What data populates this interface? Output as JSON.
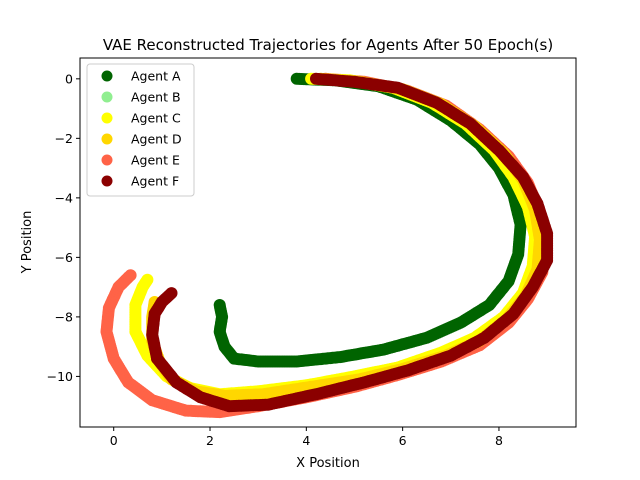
{
  "chart_data": {
    "type": "scatter",
    "title": "VAE Reconstructed Trajectories for Agents After 50 Epoch(s)",
    "xlabel": "X Position",
    "ylabel": "Y Position",
    "xlim": [
      -0.7,
      9.6
    ],
    "ylim": [
      -11.7,
      0.7
    ],
    "xticks": [
      0,
      2,
      4,
      6,
      8
    ],
    "yticks": [
      0,
      -2,
      -4,
      -6,
      -8,
      -10
    ],
    "grid": false,
    "legend_position": "top-left",
    "series": [
      {
        "name": "Agent A",
        "color": "#006400",
        "points": [
          [
            3.8,
            0.0
          ],
          [
            4.6,
            -0.05
          ],
          [
            5.5,
            -0.25
          ],
          [
            6.3,
            -0.7
          ],
          [
            7.0,
            -1.4
          ],
          [
            7.6,
            -2.2
          ],
          [
            8.0,
            -3.0
          ],
          [
            8.3,
            -3.9
          ],
          [
            8.45,
            -4.9
          ],
          [
            8.4,
            -5.9
          ],
          [
            8.2,
            -6.8
          ],
          [
            7.8,
            -7.6
          ],
          [
            7.2,
            -8.2
          ],
          [
            6.5,
            -8.7
          ],
          [
            5.6,
            -9.1
          ],
          [
            4.7,
            -9.35
          ],
          [
            3.8,
            -9.5
          ],
          [
            3.0,
            -9.5
          ],
          [
            2.5,
            -9.4
          ],
          [
            2.3,
            -9.0
          ],
          [
            2.2,
            -8.5
          ],
          [
            2.25,
            -8.0
          ],
          [
            2.2,
            -7.6
          ]
        ]
      },
      {
        "name": "Agent B",
        "color": "#90EE90",
        "points": []
      },
      {
        "name": "Agent C",
        "color": "#FFFF00",
        "points": [
          [
            4.1,
            0.0
          ],
          [
            4.9,
            -0.05
          ],
          [
            5.8,
            -0.3
          ],
          [
            6.6,
            -0.8
          ],
          [
            7.3,
            -1.5
          ],
          [
            7.9,
            -2.4
          ],
          [
            8.3,
            -3.3
          ],
          [
            8.6,
            -4.3
          ],
          [
            8.75,
            -5.3
          ],
          [
            8.7,
            -6.3
          ],
          [
            8.5,
            -7.2
          ],
          [
            8.1,
            -8.0
          ],
          [
            7.5,
            -8.7
          ],
          [
            6.8,
            -9.2
          ],
          [
            5.9,
            -9.7
          ],
          [
            5.0,
            -10.0
          ],
          [
            4.0,
            -10.3
          ],
          [
            3.0,
            -10.5
          ],
          [
            2.2,
            -10.6
          ],
          [
            1.6,
            -10.4
          ],
          [
            1.1,
            -10.0
          ],
          [
            0.7,
            -9.3
          ],
          [
            0.45,
            -8.5
          ],
          [
            0.45,
            -7.6
          ],
          [
            0.6,
            -7.0
          ],
          [
            0.7,
            -6.75
          ]
        ]
      },
      {
        "name": "Agent D",
        "color": "#FFD700",
        "points": [
          [
            4.3,
            0.0
          ],
          [
            5.1,
            -0.1
          ],
          [
            6.0,
            -0.35
          ],
          [
            6.8,
            -0.85
          ],
          [
            7.5,
            -1.6
          ],
          [
            8.1,
            -2.5
          ],
          [
            8.5,
            -3.4
          ],
          [
            8.75,
            -4.4
          ],
          [
            8.85,
            -5.4
          ],
          [
            8.8,
            -6.4
          ],
          [
            8.55,
            -7.3
          ],
          [
            8.15,
            -8.1
          ],
          [
            7.6,
            -8.8
          ],
          [
            6.9,
            -9.3
          ],
          [
            6.0,
            -9.75
          ],
          [
            5.1,
            -10.1
          ],
          [
            4.1,
            -10.35
          ],
          [
            3.1,
            -10.6
          ],
          [
            2.3,
            -10.65
          ],
          [
            1.7,
            -10.5
          ],
          [
            1.2,
            -10.1
          ],
          [
            0.95,
            -9.5
          ],
          [
            0.8,
            -8.8
          ],
          [
            0.8,
            -8.0
          ],
          [
            0.85,
            -7.5
          ]
        ]
      },
      {
        "name": "Agent E",
        "color": "#FF6347",
        "points": [
          [
            4.4,
            0.0
          ],
          [
            5.2,
            -0.1
          ],
          [
            6.1,
            -0.4
          ],
          [
            6.9,
            -0.9
          ],
          [
            7.6,
            -1.7
          ],
          [
            8.2,
            -2.6
          ],
          [
            8.6,
            -3.5
          ],
          [
            8.85,
            -4.5
          ],
          [
            8.95,
            -5.5
          ],
          [
            8.9,
            -6.5
          ],
          [
            8.6,
            -7.4
          ],
          [
            8.2,
            -8.2
          ],
          [
            7.6,
            -8.95
          ],
          [
            6.8,
            -9.5
          ],
          [
            5.9,
            -9.95
          ],
          [
            5.0,
            -10.35
          ],
          [
            4.0,
            -10.7
          ],
          [
            3.0,
            -11.0
          ],
          [
            2.2,
            -11.2
          ],
          [
            1.5,
            -11.15
          ],
          [
            0.8,
            -10.8
          ],
          [
            0.3,
            -10.2
          ],
          [
            0.0,
            -9.4
          ],
          [
            -0.15,
            -8.5
          ],
          [
            -0.1,
            -7.7
          ],
          [
            0.1,
            -7.0
          ],
          [
            0.35,
            -6.6
          ]
        ]
      },
      {
        "name": "Agent F",
        "color": "#8B0000",
        "points": [
          [
            4.2,
            0.0
          ],
          [
            5.0,
            -0.1
          ],
          [
            5.9,
            -0.3
          ],
          [
            6.7,
            -0.8
          ],
          [
            7.4,
            -1.5
          ],
          [
            8.0,
            -2.4
          ],
          [
            8.5,
            -3.3
          ],
          [
            8.8,
            -4.2
          ],
          [
            9.0,
            -5.2
          ],
          [
            9.0,
            -6.1
          ],
          [
            8.7,
            -7.0
          ],
          [
            8.3,
            -7.9
          ],
          [
            7.7,
            -8.7
          ],
          [
            7.0,
            -9.3
          ],
          [
            6.1,
            -9.8
          ],
          [
            5.2,
            -10.2
          ],
          [
            4.2,
            -10.6
          ],
          [
            3.2,
            -10.95
          ],
          [
            2.4,
            -11.0
          ],
          [
            1.8,
            -10.7
          ],
          [
            1.3,
            -10.2
          ],
          [
            0.9,
            -9.4
          ],
          [
            0.8,
            -8.6
          ],
          [
            0.85,
            -7.9
          ],
          [
            1.0,
            -7.5
          ],
          [
            1.2,
            -7.2
          ]
        ]
      }
    ]
  }
}
